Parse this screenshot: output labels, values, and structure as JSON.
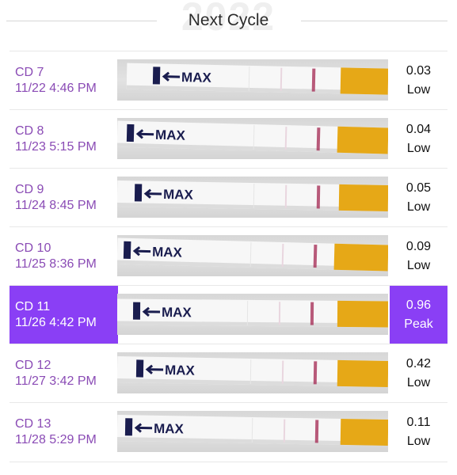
{
  "header": {
    "watermark": "2022",
    "title": "Next Cycle"
  },
  "tests": [
    {
      "day": "CD 7",
      "datetime": "11/22 4:46 PM",
      "value": "0.03",
      "level": "Low",
      "selected": false,
      "strip_label": "MAX"
    },
    {
      "day": "CD 8",
      "datetime": "11/23 5:15 PM",
      "value": "0.04",
      "level": "Low",
      "selected": false,
      "strip_label": "MAX"
    },
    {
      "day": "CD 9",
      "datetime": "11/24 8:45 PM",
      "value": "0.05",
      "level": "Low",
      "selected": false,
      "strip_label": "MAX"
    },
    {
      "day": "CD 10",
      "datetime": "11/25 8:36 PM",
      "value": "0.09",
      "level": "Low",
      "selected": false,
      "strip_label": "MAX"
    },
    {
      "day": "CD 11",
      "datetime": "11/26 4:42 PM",
      "value": "0.96",
      "level": "Peak",
      "selected": true,
      "strip_label": "MAX"
    },
    {
      "day": "CD 12",
      "datetime": "11/27 3:42 PM",
      "value": "0.42",
      "level": "Low",
      "selected": false,
      "strip_label": "MAX"
    },
    {
      "day": "CD 13",
      "datetime": "11/28 5:29 PM",
      "value": "0.11",
      "level": "Low",
      "selected": false,
      "strip_label": "MAX"
    }
  ],
  "colors": {
    "accent": "#8a3ff5",
    "label_text": "#8a4bb5",
    "test_line": "#a8325a",
    "strip_tab": "#e6a817"
  }
}
